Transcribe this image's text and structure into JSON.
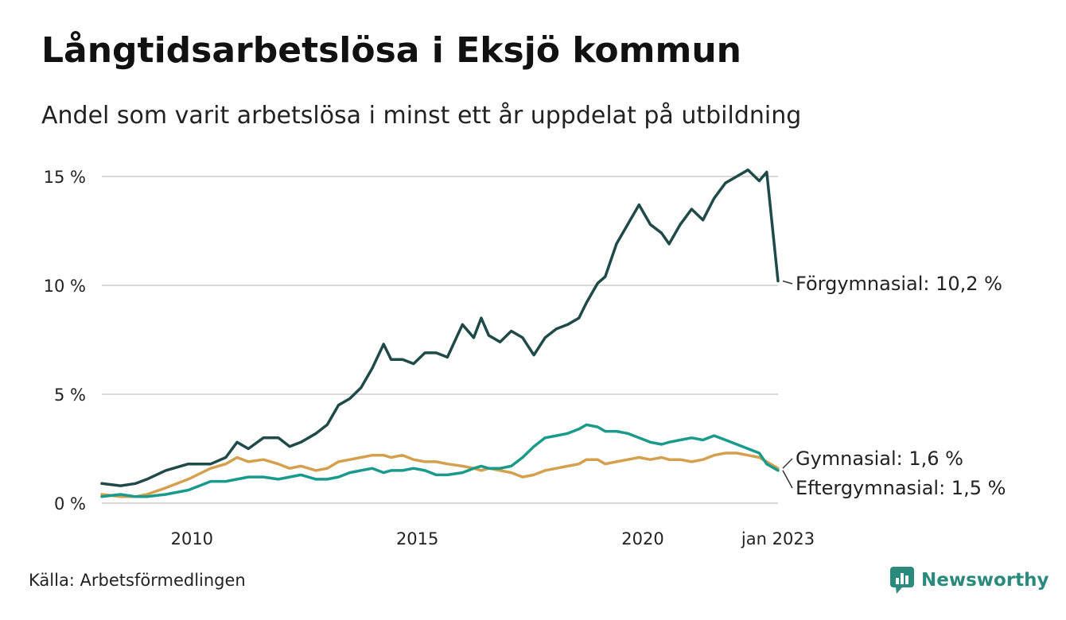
{
  "header": {
    "title": "Långtidsarbetslösa i Eksjö kommun",
    "subtitle": "Andel som varit arbetslösa i minst ett år uppdelat på utbildning"
  },
  "footer": {
    "source": "Källa: Arbetsförmedlingen",
    "brand": "Newsworthy"
  },
  "colors": {
    "forgymnasial": "#1f4a47",
    "gymnasial": "#d4a04e",
    "eftergymnasial": "#1a9a8a",
    "grid": "#d9d9d9",
    "brand": "#2a8a7c"
  },
  "chart_data": {
    "type": "line",
    "title": "Långtidsarbetslösa i Eksjö kommun",
    "subtitle": "Andel som varit arbetslösa i minst ett år uppdelat på utbildning",
    "xlabel": "",
    "ylabel": "",
    "x_range": [
      "2008-01",
      "2023-01"
    ],
    "ylim": [
      0,
      15
    ],
    "y_ticks": [
      {
        "value": 0,
        "label": "0 %"
      },
      {
        "value": 5,
        "label": "5 %"
      },
      {
        "value": 10,
        "label": "10 %"
      },
      {
        "value": 15,
        "label": "15 %"
      }
    ],
    "x_ticks": [
      {
        "value": "2010-01",
        "label": "2010"
      },
      {
        "value": "2015-01",
        "label": "2015"
      },
      {
        "value": "2020-01",
        "label": "2020"
      },
      {
        "value": "2023-01",
        "label": "jan 2023"
      }
    ],
    "grid": "horizontal",
    "legend": "end-of-line labels",
    "series": [
      {
        "key": "forgymnasial",
        "name": "Förgymnasial",
        "end_label": "Förgymnasial: 10,2 %",
        "points": [
          [
            "2008-01",
            0.9
          ],
          [
            "2008-06",
            0.8
          ],
          [
            "2008-10",
            0.9
          ],
          [
            "2009-01",
            1.1
          ],
          [
            "2009-06",
            1.5
          ],
          [
            "2009-12",
            1.8
          ],
          [
            "2010-06",
            1.8
          ],
          [
            "2010-10",
            2.1
          ],
          [
            "2011-01",
            2.8
          ],
          [
            "2011-04",
            2.5
          ],
          [
            "2011-08",
            3.0
          ],
          [
            "2011-12",
            3.0
          ],
          [
            "2012-03",
            2.6
          ],
          [
            "2012-06",
            2.8
          ],
          [
            "2012-10",
            3.2
          ],
          [
            "2013-01",
            3.6
          ],
          [
            "2013-04",
            4.5
          ],
          [
            "2013-07",
            4.8
          ],
          [
            "2013-10",
            5.3
          ],
          [
            "2014-01",
            6.2
          ],
          [
            "2014-04",
            7.3
          ],
          [
            "2014-06",
            6.6
          ],
          [
            "2014-09",
            6.6
          ],
          [
            "2014-12",
            6.4
          ],
          [
            "2015-03",
            6.9
          ],
          [
            "2015-06",
            6.9
          ],
          [
            "2015-09",
            6.7
          ],
          [
            "2016-01",
            8.2
          ],
          [
            "2016-04",
            7.6
          ],
          [
            "2016-06",
            8.5
          ],
          [
            "2016-08",
            7.7
          ],
          [
            "2016-11",
            7.4
          ],
          [
            "2017-02",
            7.9
          ],
          [
            "2017-05",
            7.6
          ],
          [
            "2017-08",
            6.8
          ],
          [
            "2017-11",
            7.6
          ],
          [
            "2018-02",
            8.0
          ],
          [
            "2018-05",
            8.2
          ],
          [
            "2018-08",
            8.5
          ],
          [
            "2018-10",
            9.2
          ],
          [
            "2019-01",
            10.1
          ],
          [
            "2019-03",
            10.4
          ],
          [
            "2019-06",
            11.9
          ],
          [
            "2019-09",
            12.8
          ],
          [
            "2019-12",
            13.7
          ],
          [
            "2020-03",
            12.8
          ],
          [
            "2020-06",
            12.4
          ],
          [
            "2020-08",
            11.9
          ],
          [
            "2020-11",
            12.8
          ],
          [
            "2021-02",
            13.5
          ],
          [
            "2021-05",
            13.0
          ],
          [
            "2021-08",
            14.0
          ],
          [
            "2021-11",
            14.7
          ],
          [
            "2022-02",
            15.0
          ],
          [
            "2022-05",
            15.3
          ],
          [
            "2022-08",
            14.8
          ],
          [
            "2022-10",
            15.2
          ],
          [
            "2023-01",
            10.2
          ]
        ]
      },
      {
        "key": "gymnasial",
        "name": "Gymnasial",
        "end_label": "Gymnasial:  1,6 %",
        "points": [
          [
            "2008-01",
            0.4
          ],
          [
            "2008-06",
            0.3
          ],
          [
            "2008-10",
            0.3
          ],
          [
            "2009-01",
            0.4
          ],
          [
            "2009-06",
            0.7
          ],
          [
            "2009-12",
            1.1
          ],
          [
            "2010-06",
            1.6
          ],
          [
            "2010-10",
            1.8
          ],
          [
            "2011-01",
            2.1
          ],
          [
            "2011-04",
            1.9
          ],
          [
            "2011-08",
            2.0
          ],
          [
            "2011-12",
            1.8
          ],
          [
            "2012-03",
            1.6
          ],
          [
            "2012-06",
            1.7
          ],
          [
            "2012-10",
            1.5
          ],
          [
            "2013-01",
            1.6
          ],
          [
            "2013-04",
            1.9
          ],
          [
            "2013-07",
            2.0
          ],
          [
            "2013-10",
            2.1
          ],
          [
            "2014-01",
            2.2
          ],
          [
            "2014-04",
            2.2
          ],
          [
            "2014-06",
            2.1
          ],
          [
            "2014-09",
            2.2
          ],
          [
            "2014-12",
            2.0
          ],
          [
            "2015-03",
            1.9
          ],
          [
            "2015-06",
            1.9
          ],
          [
            "2015-09",
            1.8
          ],
          [
            "2016-01",
            1.7
          ],
          [
            "2016-04",
            1.6
          ],
          [
            "2016-06",
            1.5
          ],
          [
            "2016-08",
            1.6
          ],
          [
            "2016-11",
            1.5
          ],
          [
            "2017-02",
            1.4
          ],
          [
            "2017-05",
            1.2
          ],
          [
            "2017-08",
            1.3
          ],
          [
            "2017-11",
            1.5
          ],
          [
            "2018-02",
            1.6
          ],
          [
            "2018-05",
            1.7
          ],
          [
            "2018-08",
            1.8
          ],
          [
            "2018-10",
            2.0
          ],
          [
            "2019-01",
            2.0
          ],
          [
            "2019-03",
            1.8
          ],
          [
            "2019-06",
            1.9
          ],
          [
            "2019-09",
            2.0
          ],
          [
            "2019-12",
            2.1
          ],
          [
            "2020-03",
            2.0
          ],
          [
            "2020-06",
            2.1
          ],
          [
            "2020-08",
            2.0
          ],
          [
            "2020-11",
            2.0
          ],
          [
            "2021-02",
            1.9
          ],
          [
            "2021-05",
            2.0
          ],
          [
            "2021-08",
            2.2
          ],
          [
            "2021-11",
            2.3
          ],
          [
            "2022-02",
            2.3
          ],
          [
            "2022-05",
            2.2
          ],
          [
            "2022-08",
            2.1
          ],
          [
            "2022-10",
            1.9
          ],
          [
            "2023-01",
            1.6
          ]
        ]
      },
      {
        "key": "eftergymnasial",
        "name": "Eftergymnasial",
        "end_label": "Eftergymnasial:  1,5 %",
        "points": [
          [
            "2008-01",
            0.3
          ],
          [
            "2008-06",
            0.4
          ],
          [
            "2008-10",
            0.3
          ],
          [
            "2009-01",
            0.3
          ],
          [
            "2009-06",
            0.4
          ],
          [
            "2009-12",
            0.6
          ],
          [
            "2010-06",
            1.0
          ],
          [
            "2010-10",
            1.0
          ],
          [
            "2011-01",
            1.1
          ],
          [
            "2011-04",
            1.2
          ],
          [
            "2011-08",
            1.2
          ],
          [
            "2011-12",
            1.1
          ],
          [
            "2012-03",
            1.2
          ],
          [
            "2012-06",
            1.3
          ],
          [
            "2012-10",
            1.1
          ],
          [
            "2013-01",
            1.1
          ],
          [
            "2013-04",
            1.2
          ],
          [
            "2013-07",
            1.4
          ],
          [
            "2013-10",
            1.5
          ],
          [
            "2014-01",
            1.6
          ],
          [
            "2014-04",
            1.4
          ],
          [
            "2014-06",
            1.5
          ],
          [
            "2014-09",
            1.5
          ],
          [
            "2014-12",
            1.6
          ],
          [
            "2015-03",
            1.5
          ],
          [
            "2015-06",
            1.3
          ],
          [
            "2015-09",
            1.3
          ],
          [
            "2016-01",
            1.4
          ],
          [
            "2016-04",
            1.6
          ],
          [
            "2016-06",
            1.7
          ],
          [
            "2016-08",
            1.6
          ],
          [
            "2016-11",
            1.6
          ],
          [
            "2017-02",
            1.7
          ],
          [
            "2017-05",
            2.1
          ],
          [
            "2017-08",
            2.6
          ],
          [
            "2017-11",
            3.0
          ],
          [
            "2018-02",
            3.1
          ],
          [
            "2018-05",
            3.2
          ],
          [
            "2018-08",
            3.4
          ],
          [
            "2018-10",
            3.6
          ],
          [
            "2019-01",
            3.5
          ],
          [
            "2019-03",
            3.3
          ],
          [
            "2019-06",
            3.3
          ],
          [
            "2019-09",
            3.2
          ],
          [
            "2019-12",
            3.0
          ],
          [
            "2020-03",
            2.8
          ],
          [
            "2020-06",
            2.7
          ],
          [
            "2020-08",
            2.8
          ],
          [
            "2020-11",
            2.9
          ],
          [
            "2021-02",
            3.0
          ],
          [
            "2021-05",
            2.9
          ],
          [
            "2021-08",
            3.1
          ],
          [
            "2021-11",
            2.9
          ],
          [
            "2022-02",
            2.7
          ],
          [
            "2022-05",
            2.5
          ],
          [
            "2022-08",
            2.3
          ],
          [
            "2022-10",
            1.8
          ],
          [
            "2023-01",
            1.5
          ]
        ]
      }
    ]
  }
}
